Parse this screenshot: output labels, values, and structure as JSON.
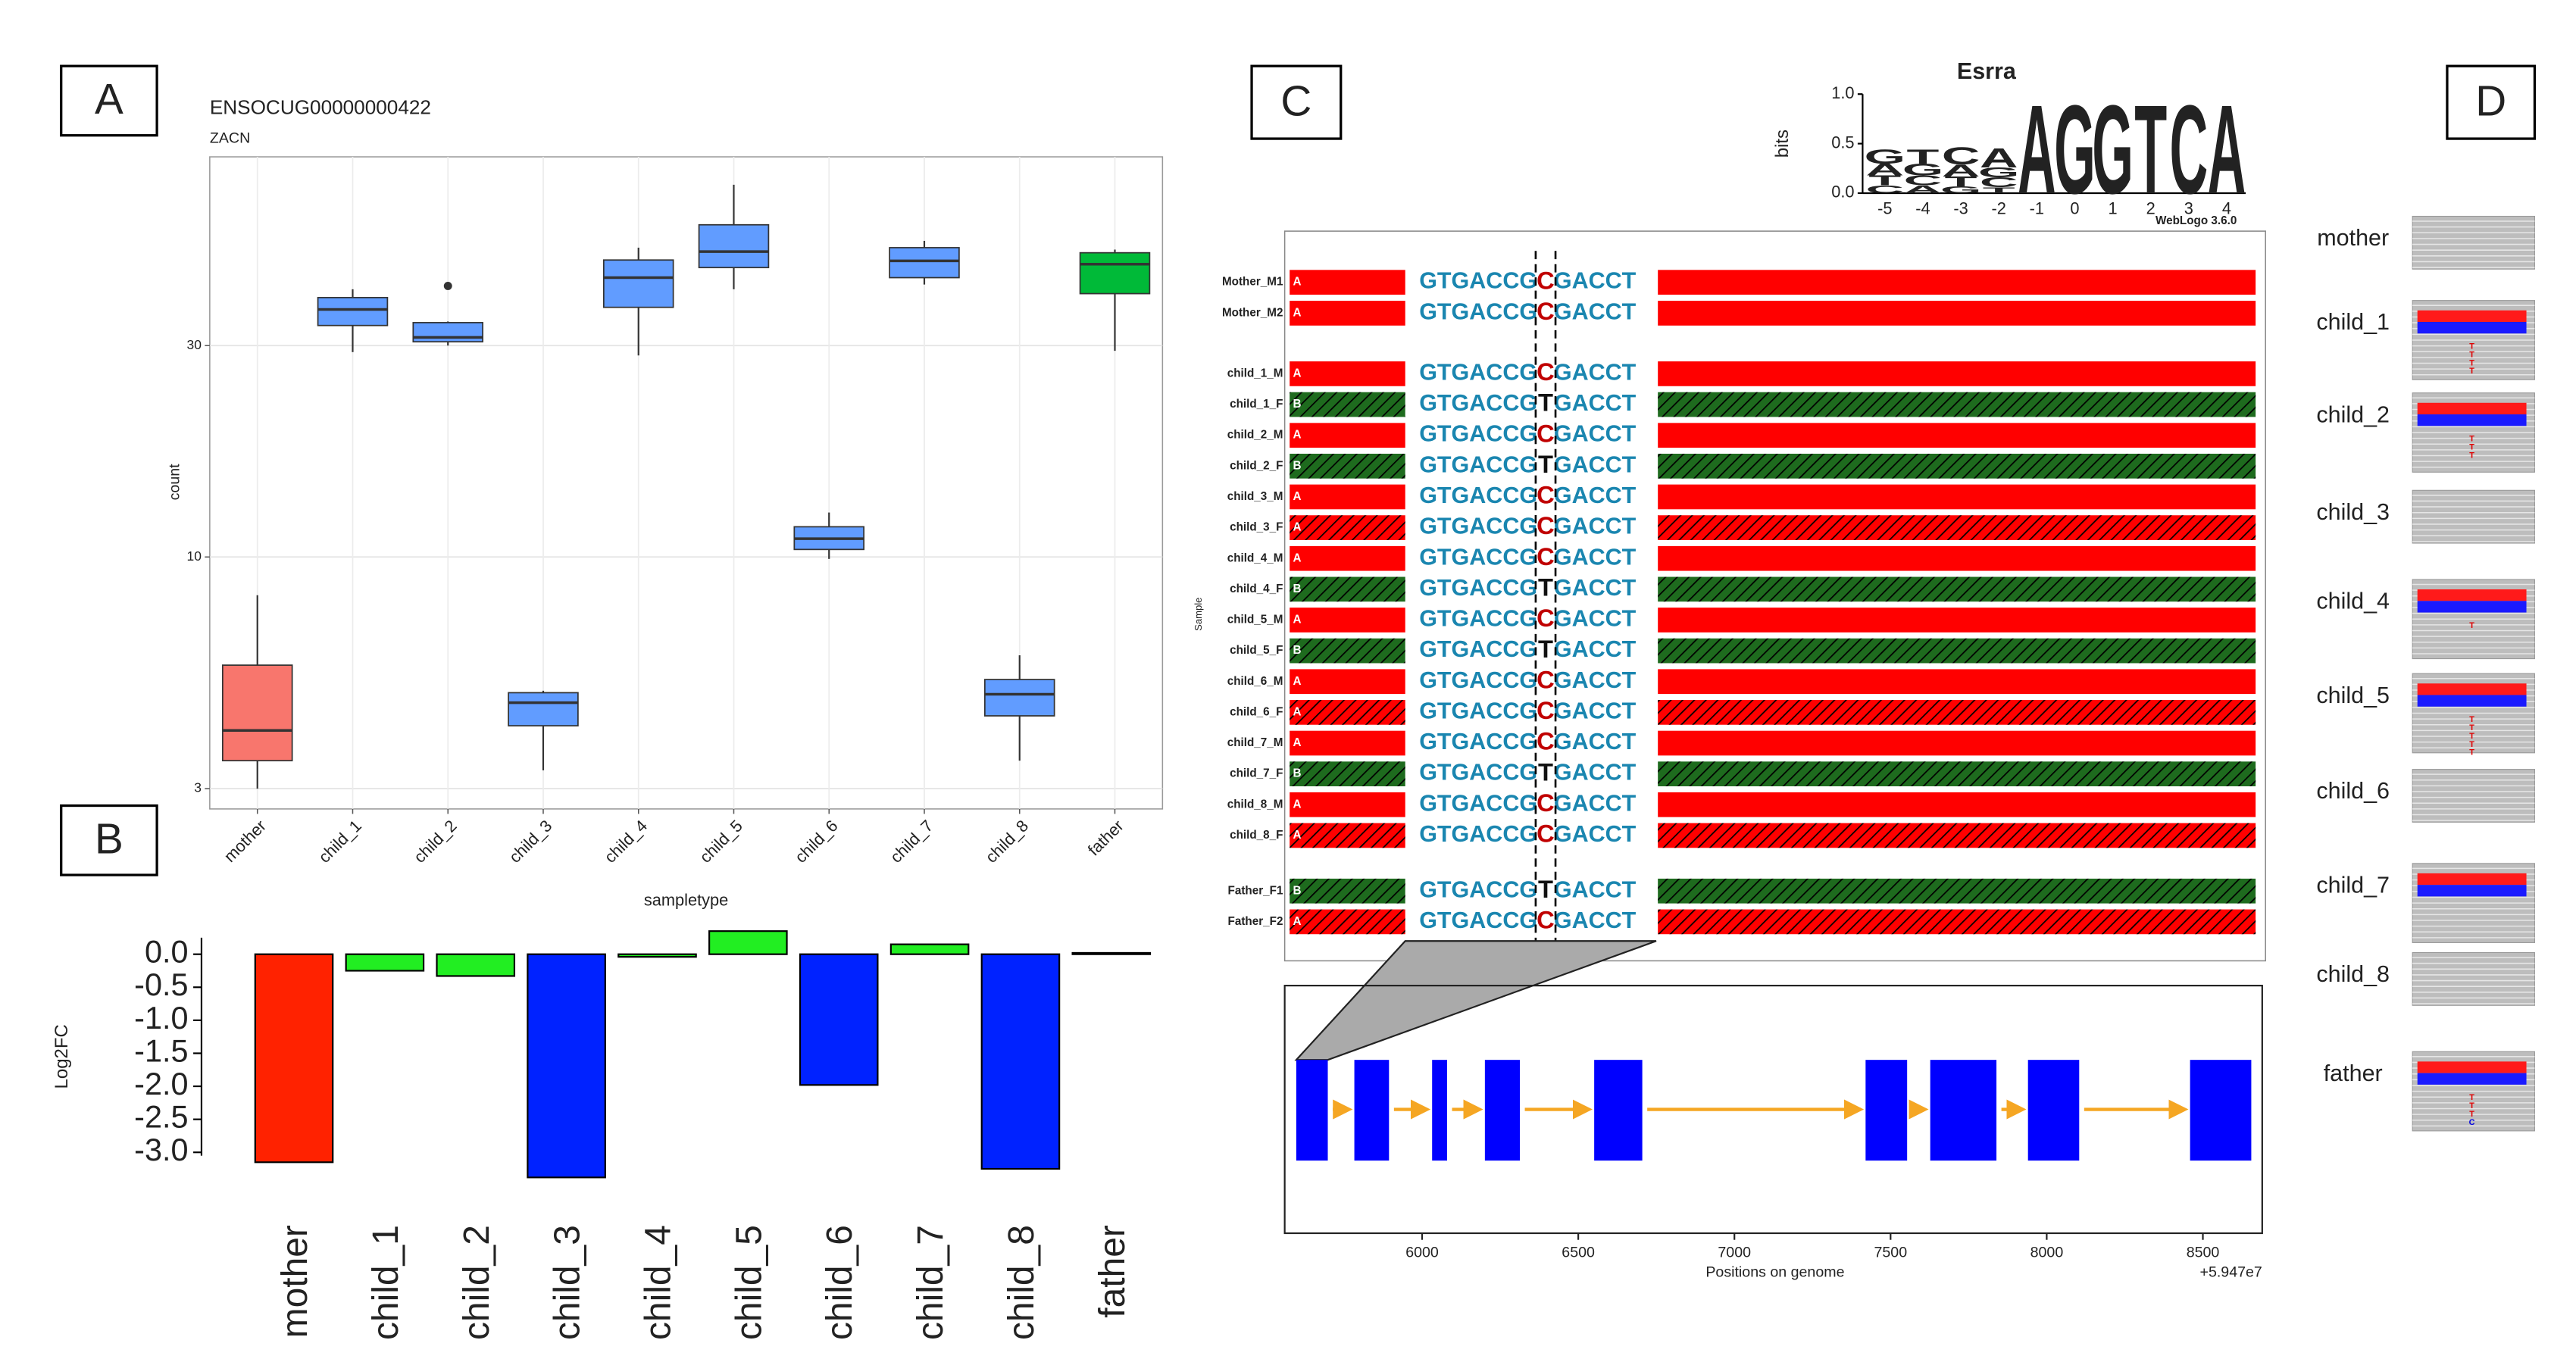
{
  "panel_labels": [
    "A",
    "B",
    "C",
    "D"
  ],
  "chart_data": [
    {
      "type": "box",
      "title": "ENSOCUG00000000422",
      "subtitle": "ZACN",
      "xlabel": "sampletype",
      "ylabel": "count",
      "categories": [
        "mother",
        "child_1",
        "child_2",
        "child_3",
        "child_4",
        "child_5",
        "child_6",
        "child_7",
        "child_8",
        "father"
      ],
      "log_scale": true,
      "grid": true,
      "ylim": [
        2.7,
        80
      ],
      "yticks": [
        3,
        10,
        30
      ],
      "colors": [
        "#f8766d",
        "#619cff",
        "#619cff",
        "#619cff",
        "#619cff",
        "#619cff",
        "#619cff",
        "#619cff",
        "#619cff",
        "#00ba38"
      ],
      "boxes": [
        {
          "min": 3.0,
          "q1": 3.47,
          "median": 4.06,
          "q3": 5.7,
          "max": 8.2
        },
        {
          "min": 29.0,
          "q1": 33.3,
          "median": 36.2,
          "q3": 38.5,
          "max": 40.2
        },
        {
          "min": 30.0,
          "q1": 30.6,
          "median": 31.3,
          "q3": 33.8,
          "max": 34.0,
          "outliers": [
            40.9
          ]
        },
        {
          "min": 3.3,
          "q1": 4.16,
          "median": 4.69,
          "q3": 4.94,
          "max": 4.99
        },
        {
          "min": 28.5,
          "q1": 36.6,
          "median": 42.7,
          "q3": 46.8,
          "max": 49.9
        },
        {
          "min": 40.2,
          "q1": 45.0,
          "median": 48.9,
          "q3": 56.2,
          "max": 69.2
        },
        {
          "min": 9.9,
          "q1": 10.4,
          "median": 11.0,
          "q3": 11.7,
          "max": 12.6
        },
        {
          "min": 41.2,
          "q1": 42.7,
          "median": 46.6,
          "q3": 49.9,
          "max": 51.7
        },
        {
          "min": 3.47,
          "q1": 4.38,
          "median": 4.9,
          "q3": 5.29,
          "max": 6.0
        },
        {
          "min": 29.2,
          "q1": 39.3,
          "median": 45.8,
          "q3": 48.6,
          "max": 49.4
        }
      ]
    },
    {
      "type": "bar",
      "ylabel": "Log2FC",
      "categories": [
        "mother",
        "child_1",
        "child_2",
        "child_3",
        "child_4",
        "child_5",
        "child_6",
        "child_7",
        "child_8",
        "father"
      ],
      "values": [
        -3.15,
        -0.25,
        -0.33,
        -3.38,
        -0.04,
        0.35,
        -1.98,
        0.15,
        -3.25,
        0.02
      ],
      "colors": [
        "#ff2200",
        "#22ee22",
        "#22ee22",
        "#0022ff",
        "#22ee22",
        "#22ee22",
        "#0022ff",
        "#22ee22",
        "#0022ff",
        "#22ee22"
      ],
      "ylim": [
        -3.45,
        0.4
      ],
      "yticks": [
        {
          "value": 0,
          "label": "0.0"
        },
        -0.5,
        {
          "value": -1,
          "label": "-1.0"
        },
        -1.5,
        {
          "value": -2,
          "label": "-2.0"
        },
        -2.5,
        {
          "value": -3,
          "label": "-3.0"
        }
      ]
    }
  ],
  "motif_logo": {
    "title": "Esrra",
    "ylabel": "bits",
    "credit": "WebLogo 3.6.0",
    "ylim": [
      0,
      1
    ],
    "yticks": [
      {
        "value": 0,
        "label": "0.0"
      },
      0.5,
      {
        "value": 1,
        "label": "1.0"
      }
    ],
    "positions": [
      -5,
      -4,
      -3,
      -2,
      -1,
      0,
      1,
      2,
      3,
      4
    ],
    "letter_colors": {
      "A": "#00a000",
      "C": "#2030e0",
      "G": "#f5a000",
      "T": "#e02020"
    },
    "stacks": [
      [
        {
          "letter": "C",
          "bits": 0.08
        },
        {
          "letter": "T",
          "bits": 0.1
        },
        {
          "letter": "A",
          "bits": 0.12
        },
        {
          "letter": "G",
          "bits": 0.15
        }
      ],
      [
        {
          "letter": "A",
          "bits": 0.08
        },
        {
          "letter": "C",
          "bits": 0.1
        },
        {
          "letter": "G",
          "bits": 0.12
        },
        {
          "letter": "T",
          "bits": 0.15
        }
      ],
      [
        {
          "letter": "G",
          "bits": 0.07
        },
        {
          "letter": "T",
          "bits": 0.1
        },
        {
          "letter": "A",
          "bits": 0.12
        },
        {
          "letter": "C",
          "bits": 0.18
        }
      ],
      [
        {
          "letter": "T",
          "bits": 0.06
        },
        {
          "letter": "C",
          "bits": 0.1
        },
        {
          "letter": "G",
          "bits": 0.1
        },
        {
          "letter": "A",
          "bits": 0.2
        }
      ],
      [
        {
          "letter": "A",
          "bits": 0.92
        }
      ],
      [
        {
          "letter": "G",
          "bits": 0.92
        }
      ],
      [
        {
          "letter": "G",
          "bits": 0.92
        }
      ],
      [
        {
          "letter": "T",
          "bits": 0.92
        }
      ],
      [
        {
          "letter": "C",
          "bits": 0.92
        }
      ],
      [
        {
          "letter": "A",
          "bits": 0.92
        }
      ]
    ]
  },
  "alignment": {
    "ylabel": "Sample",
    "rows": [
      {
        "name": "Mother_M1",
        "haplotype": "A",
        "left": "GTGACCG",
        "allele": "C",
        "right": "GACCT",
        "color": "#ff0000",
        "hatched": false
      },
      {
        "name": "Mother_M2",
        "haplotype": "A",
        "left": "GTGACCG",
        "allele": "C",
        "right": "GACCT",
        "color": "#ff0000",
        "hatched": false
      },
      {
        "name": "child_1_M",
        "haplotype": "A",
        "left": "GTGACCG",
        "allele": "C",
        "right": "GACCT",
        "color": "#ff0000",
        "hatched": false
      },
      {
        "name": "child_1_F",
        "haplotype": "B",
        "left": "GTGACCG",
        "allele": "T",
        "right": "GACCT",
        "color": "#1e6b1e",
        "hatched": true
      },
      {
        "name": "child_2_M",
        "haplotype": "A",
        "left": "GTGACCG",
        "allele": "C",
        "right": "GACCT",
        "color": "#ff0000",
        "hatched": false
      },
      {
        "name": "child_2_F",
        "haplotype": "B",
        "left": "GTGACCG",
        "allele": "T",
        "right": "GACCT",
        "color": "#1e6b1e",
        "hatched": true
      },
      {
        "name": "child_3_M",
        "haplotype": "A",
        "left": "GTGACCG",
        "allele": "C",
        "right": "GACCT",
        "color": "#ff0000",
        "hatched": false
      },
      {
        "name": "child_3_F",
        "haplotype": "A",
        "left": "GTGACCG",
        "allele": "C",
        "right": "GACCT",
        "color": "#ff0000",
        "hatched": true
      },
      {
        "name": "child_4_M",
        "haplotype": "A",
        "left": "GTGACCG",
        "allele": "C",
        "right": "GACCT",
        "color": "#ff0000",
        "hatched": false
      },
      {
        "name": "child_4_F",
        "haplotype": "B",
        "left": "GTGACCG",
        "allele": "T",
        "right": "GACCT",
        "color": "#1e6b1e",
        "hatched": true
      },
      {
        "name": "child_5_M",
        "haplotype": "A",
        "left": "GTGACCG",
        "allele": "C",
        "right": "GACCT",
        "color": "#ff0000",
        "hatched": false
      },
      {
        "name": "child_5_F",
        "haplotype": "B",
        "left": "GTGACCG",
        "allele": "T",
        "right": "GACCT",
        "color": "#1e6b1e",
        "hatched": true
      },
      {
        "name": "child_6_M",
        "haplotype": "A",
        "left": "GTGACCG",
        "allele": "C",
        "right": "GACCT",
        "color": "#ff0000",
        "hatched": false
      },
      {
        "name": "child_6_F",
        "haplotype": "A",
        "left": "GTGACCG",
        "allele": "C",
        "right": "GACCT",
        "color": "#ff0000",
        "hatched": true
      },
      {
        "name": "child_7_M",
        "haplotype": "A",
        "left": "GTGACCG",
        "allele": "C",
        "right": "GACCT",
        "color": "#ff0000",
        "hatched": false
      },
      {
        "name": "child_7_F",
        "haplotype": "B",
        "left": "GTGACCG",
        "allele": "T",
        "right": "GACCT",
        "color": "#1e6b1e",
        "hatched": true
      },
      {
        "name": "child_8_M",
        "haplotype": "A",
        "left": "GTGACCG",
        "allele": "C",
        "right": "GACCT",
        "color": "#ff0000",
        "hatched": false
      },
      {
        "name": "child_8_F",
        "haplotype": "A",
        "left": "GTGACCG",
        "allele": "C",
        "right": "GACCT",
        "color": "#ff0000",
        "hatched": true
      },
      {
        "name": "Father_F1",
        "haplotype": "B",
        "left": "GTGACCG",
        "allele": "T",
        "right": "GACCT",
        "color": "#1e6b1e",
        "hatched": true
      },
      {
        "name": "Father_F2",
        "haplotype": "A",
        "left": "GTGACCG",
        "allele": "C",
        "right": "GACCT",
        "color": "#ff0000",
        "hatched": true
      }
    ]
  },
  "gene_model": {
    "xlabel": "Positions on genome",
    "offset": "+5.947e7",
    "color": "#0000ff",
    "intron_color": "#f5a623",
    "xlim": [
      5560,
      8690
    ],
    "xticks": [
      6000,
      6500,
      7000,
      7500,
      8000,
      8500
    ],
    "exons": [
      [
        5597,
        5698
      ],
      [
        5783,
        5894
      ],
      [
        6032,
        6080
      ],
      [
        6201,
        6313
      ],
      [
        6551,
        6705
      ],
      [
        7420,
        7553
      ],
      [
        7627,
        7839
      ],
      [
        7940,
        8104
      ],
      [
        8459,
        8655
      ]
    ]
  },
  "pileup": {
    "call_colors": {
      "T": "#e00000",
      "C": "#0000e0"
    },
    "samples": [
      {
        "name": "mother",
        "allele_bar": false
      },
      {
        "name": "child_1",
        "allele_bar": true,
        "calls": [
          "T",
          "T",
          "T",
          "T"
        ]
      },
      {
        "name": "child_2",
        "allele_bar": true,
        "calls": [
          "T",
          "T",
          "T"
        ]
      },
      {
        "name": "child_3",
        "allele_bar": false
      },
      {
        "name": "child_4",
        "allele_bar": true,
        "calls": [
          "T"
        ]
      },
      {
        "name": "child_5",
        "allele_bar": true,
        "calls": [
          "T",
          "T",
          "T",
          "T",
          "T"
        ]
      },
      {
        "name": "child_6",
        "allele_bar": false
      },
      {
        "name": "child_7",
        "allele_bar": true
      },
      {
        "name": "child_8",
        "allele_bar": false
      },
      {
        "name": "father",
        "allele_bar": true,
        "calls": [
          "T",
          "T",
          "T",
          "C"
        ]
      }
    ]
  }
}
